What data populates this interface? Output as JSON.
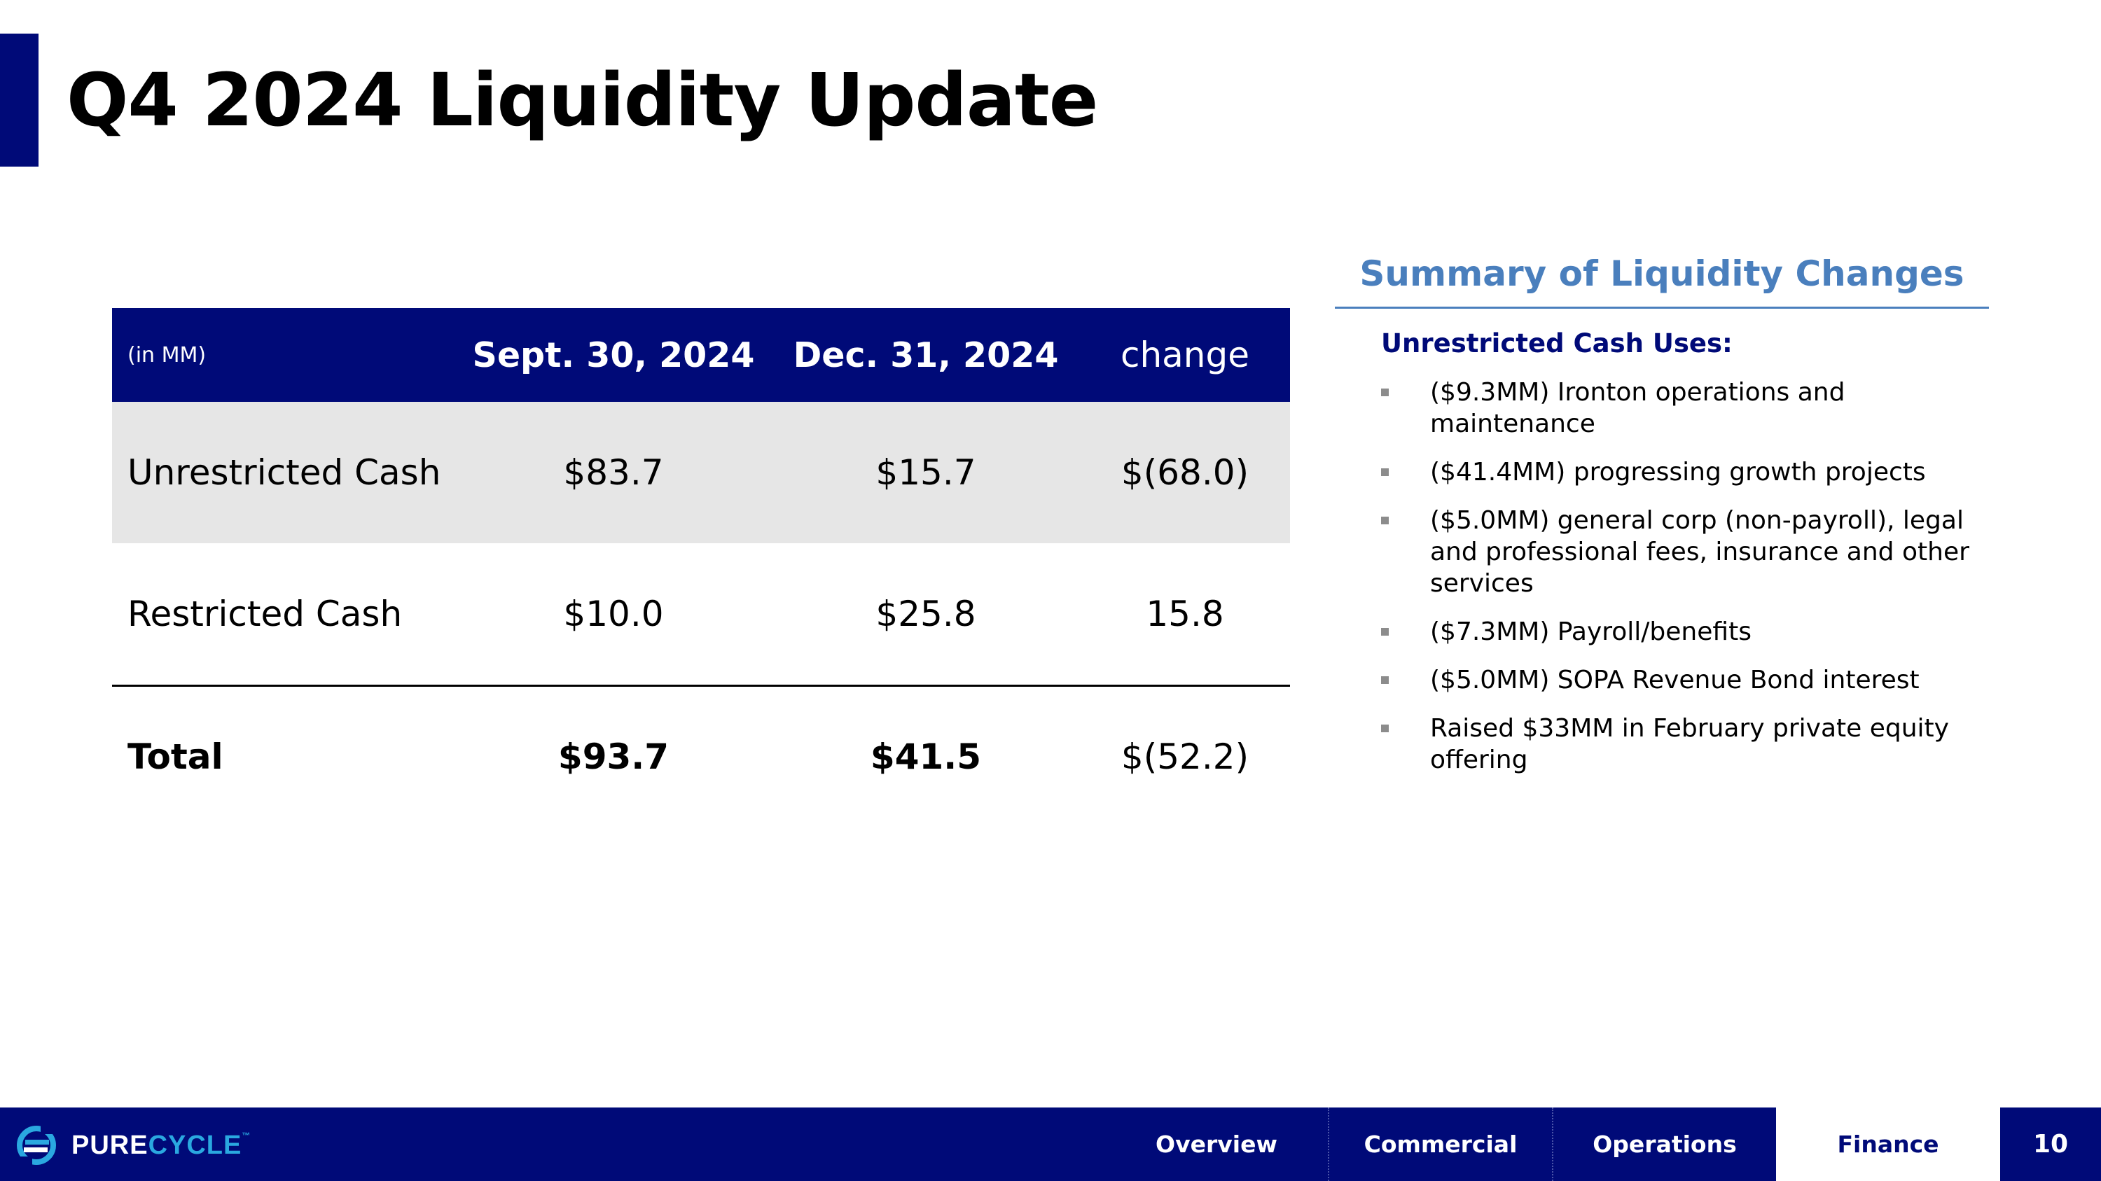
{
  "title": "Q4 2024 Liquidity Update",
  "table": {
    "headers": [
      "(in MM)",
      "Sept. 30, 2024",
      "Dec. 31, 2024",
      "change"
    ],
    "rows": [
      [
        "Unrestricted Cash",
        "$83.7",
        "$15.7",
        "$(68.0)"
      ],
      [
        "Restricted Cash",
        "$10.0",
        "$25.8",
        "15.8"
      ],
      [
        "Total",
        "$93.7",
        "$41.5",
        "$(52.2)"
      ]
    ]
  },
  "summary": {
    "title": "Summary of Liquidity Changes",
    "uses_heading": "Unrestricted Cash Uses:",
    "bullets": [
      "($9.3MM) Ironton operations and maintenance",
      "($41.4MM) progressing growth projects",
      "($5.0MM) general corp (non-payroll), legal and professional fees, insurance and other services",
      "($7.3MM) Payroll/benefits",
      "($5.0MM) SOPA Revenue Bond interest",
      "Raised $33MM in February private equity offering"
    ]
  },
  "footer": {
    "logo_pure": "PURE",
    "logo_cycle": "CYCLE",
    "logo_tm": "™",
    "nav": [
      "Overview",
      "Commercial",
      "Operations",
      "Finance"
    ],
    "active_nav": "Finance",
    "page_number": "10"
  },
  "colors": {
    "navy": "#000a78",
    "summary_blue": "#4a7fbd",
    "logo_cyan": "#2aa8e0",
    "row_shade": "#e6e6e6"
  }
}
